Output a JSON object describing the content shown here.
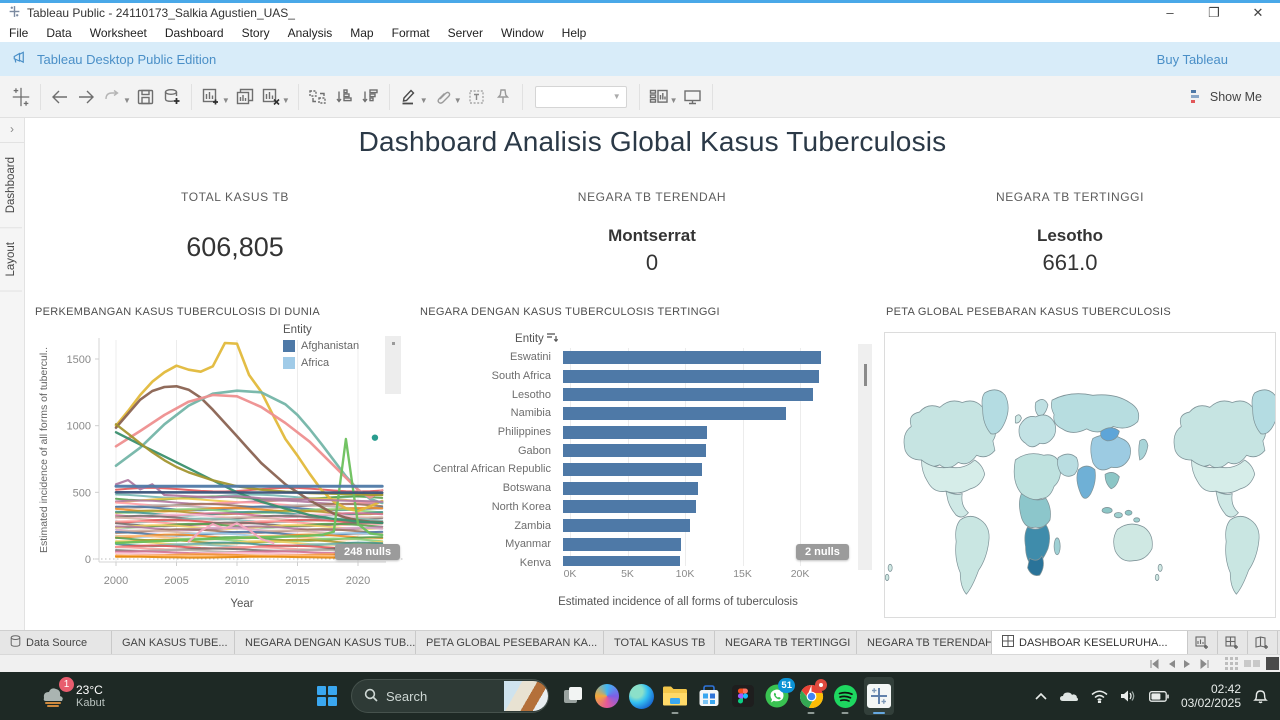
{
  "window": {
    "title": "Tableau Public - 24110173_Salkia Agustien_UAS_",
    "minimize": "–",
    "maximize": "❐",
    "close": "✕"
  },
  "menu": {
    "items": [
      "File",
      "Data",
      "Worksheet",
      "Dashboard",
      "Story",
      "Analysis",
      "Map",
      "Format",
      "Server",
      "Window",
      "Help"
    ]
  },
  "notification": {
    "message": "Tableau Desktop Public Edition",
    "action": "Buy Tableau"
  },
  "toolbar": {
    "show_me": "Show Me",
    "icons": [
      "tableau-logo",
      "back",
      "forward",
      "replay",
      "save",
      "add-data",
      "new-worksheet",
      "duplicate",
      "clear-sheet",
      "swap-rows-columns",
      "sort-ascending",
      "sort-descending",
      "highlight",
      "format-link",
      "text-label",
      "pin",
      "fit-combo",
      "show-cards",
      "presentation-mode"
    ]
  },
  "side_panel": {
    "collapse": "›",
    "tabs": [
      "Dashboard",
      "Layout"
    ]
  },
  "dashboard": {
    "title": "Dashboard Analisis Global Kasus Tuberculosis",
    "kpis": [
      {
        "label": "TOTAL KASUS TB",
        "entity": "",
        "value": "606,805"
      },
      {
        "label": "NEGARA TB TERENDAH",
        "entity": "Montserrat",
        "value": "0"
      },
      {
        "label": "NEGARA TB TERTINGGI",
        "entity": "Lesotho",
        "value": "661.0"
      }
    ]
  },
  "chart_data": [
    {
      "type": "line",
      "title": "PERKEMBANGAN KASUS TUBERCULOSIS DI DUNIA",
      "xlabel": "Year",
      "ylabel": "Estimated incidence of all forms of tubercul..",
      "xlim": [
        1998.6,
        2022.5
      ],
      "ylim": [
        0,
        1650
      ],
      "xticks": [
        2000,
        2005,
        2010,
        2015,
        2020
      ],
      "yticks": [
        0,
        500,
        1000,
        1500
      ],
      "grid": "vertical-gridlines, dotted zero line",
      "legend": {
        "title": "Entity",
        "position": "top-right",
        "entries": [
          {
            "label": "Afghanistan",
            "color": "#4e79a7"
          },
          {
            "label": "Africa",
            "color": "#a0cbe8"
          }
        ]
      },
      "nulls_badge": "248 nulls",
      "series": [
        {
          "color": "#e2b93b",
          "width": 2.6,
          "points": [
            [
              2000,
              1000
            ],
            [
              2001,
              1110
            ],
            [
              2002,
              1230
            ],
            [
              2003,
              1330
            ],
            [
              2004,
              1400
            ],
            [
              2005,
              1450
            ],
            [
              2006,
              1420
            ],
            [
              2007,
              1405
            ],
            [
              2008,
              1445
            ],
            [
              2009,
              1620
            ],
            [
              2010,
              1615
            ],
            [
              2011,
              1380
            ],
            [
              2012,
              1255
            ],
            [
              2013,
              1075
            ],
            [
              2014,
              900
            ],
            [
              2015,
              775
            ],
            [
              2016,
              640
            ],
            [
              2017,
              515
            ],
            [
              2018,
              430
            ],
            [
              2019,
              380
            ],
            [
              2020,
              360
            ],
            [
              2021,
              395
            ],
            [
              2022,
              435
            ]
          ]
        },
        {
          "color": "#8a6352",
          "width": 2.6,
          "points": [
            [
              2000,
              985
            ],
            [
              2001,
              1090
            ],
            [
              2002,
              1195
            ],
            [
              2003,
              1260
            ],
            [
              2004,
              1290
            ],
            [
              2005,
              1295
            ],
            [
              2006,
              1270
            ],
            [
              2007,
              1210
            ],
            [
              2008,
              1120
            ],
            [
              2009,
              1020
            ],
            [
              2010,
              920
            ],
            [
              2011,
              820
            ],
            [
              2012,
              720
            ],
            [
              2013,
              640
            ],
            [
              2014,
              560
            ],
            [
              2015,
              500
            ],
            [
              2016,
              440
            ],
            [
              2017,
              390
            ],
            [
              2018,
              340
            ],
            [
              2019,
              310
            ],
            [
              2020,
              290
            ],
            [
              2021,
              280
            ],
            [
              2022,
              275
            ]
          ]
        },
        {
          "color": "#74b5a8",
          "width": 2.6,
          "points": [
            [
              2000,
              700
            ],
            [
              2002,
              835
            ],
            [
              2004,
              1010
            ],
            [
              2006,
              1150
            ],
            [
              2008,
              1240
            ],
            [
              2010,
              1262
            ],
            [
              2012,
              1250
            ],
            [
              2014,
              1160
            ],
            [
              2015,
              1080
            ],
            [
              2016,
              975
            ],
            [
              2017,
              860
            ],
            [
              2018,
              740
            ],
            [
              2019,
              620
            ],
            [
              2020,
              520
            ],
            [
              2021,
              450
            ],
            [
              2022,
              420
            ]
          ]
        },
        {
          "color": "#ee8f8f",
          "width": 2.6,
          "points": [
            [
              2000,
              845
            ],
            [
              2002,
              960
            ],
            [
              2004,
              1080
            ],
            [
              2006,
              1180
            ],
            [
              2008,
              1230
            ],
            [
              2010,
              1220
            ],
            [
              2012,
              1140
            ],
            [
              2014,
              1020
            ],
            [
              2016,
              880
            ],
            [
              2018,
              700
            ],
            [
              2020,
              520
            ],
            [
              2021,
              460
            ],
            [
              2022,
              515
            ]
          ]
        },
        {
          "color": "#3a8f6e",
          "width": 2.4,
          "points": [
            [
              2000,
              950
            ],
            [
              2002,
              858
            ],
            [
              2004,
              770
            ],
            [
              2006,
              680
            ],
            [
              2008,
              590
            ],
            [
              2010,
              500
            ],
            [
              2012,
              430
            ],
            [
              2014,
              378
            ],
            [
              2016,
              330
            ],
            [
              2018,
              300
            ],
            [
              2020,
              282
            ],
            [
              2022,
              270
            ]
          ]
        },
        {
          "color": "#a3952f",
          "width": 2.4,
          "points": [
            [
              2000,
              1010
            ],
            [
              2001,
              940
            ],
            [
              2002,
              868
            ],
            [
              2003,
              800
            ],
            [
              2004,
              740
            ],
            [
              2005,
              690
            ],
            [
              2006,
              650
            ],
            [
              2008,
              590
            ],
            [
              2010,
              545
            ],
            [
              2012,
              520
            ],
            [
              2014,
              505
            ],
            [
              2016,
              495
            ],
            [
              2018,
              490
            ],
            [
              2020,
              485
            ],
            [
              2022,
              480
            ]
          ]
        },
        {
          "color": "#6cc05c",
          "width": 2.4,
          "points": [
            [
              2000,
              120
            ],
            [
              2005,
              140
            ],
            [
              2010,
              158
            ],
            [
              2015,
              170
            ],
            [
              2017,
              180
            ],
            [
              2018,
              205
            ],
            [
              2019,
              900
            ],
            [
              2020,
              262
            ],
            [
              2021,
              192
            ],
            [
              2022,
              180
            ]
          ]
        },
        {
          "color": "#b07aa1",
          "width": 2.2,
          "points": [
            [
              2000,
              560
            ],
            [
              2001,
              592
            ],
            [
              2002,
              522
            ],
            [
              2003,
              560
            ],
            [
              2004,
              480
            ],
            [
              2006,
              470
            ],
            [
              2008,
              462
            ],
            [
              2010,
              470
            ],
            [
              2012,
              455
            ],
            [
              2014,
              450
            ],
            [
              2016,
              445
            ],
            [
              2018,
              440
            ],
            [
              2020,
              435
            ],
            [
              2022,
              430
            ]
          ]
        },
        {
          "color": "#4e79a7",
          "width": 3.0,
          "points": [
            [
              2000,
              545
            ],
            [
              2022,
              545
            ]
          ]
        },
        {
          "color": "#39537a",
          "width": 2.6,
          "points": [
            [
              2000,
              500
            ],
            [
              2022,
              497
            ]
          ]
        },
        {
          "color": "#f4a6c0",
          "width": 2.2,
          "points": [
            [
              2006,
              130
            ],
            [
              2007,
              210
            ],
            [
              2008,
              262
            ],
            [
              2009,
              228
            ],
            [
              2010,
              268
            ],
            [
              2011,
              218
            ],
            [
              2012,
              150
            ],
            [
              2013,
              120
            ]
          ]
        }
      ],
      "band_lines": [
        {
          "y": 520,
          "color": "#e15759"
        },
        {
          "y": 470,
          "color": "#76b7b2"
        },
        {
          "y": 455,
          "color": "#59a14f"
        },
        {
          "y": 440,
          "color": "#edc948"
        },
        {
          "y": 425,
          "color": "#b07aa1"
        },
        {
          "y": 412,
          "color": "#ff9da7"
        },
        {
          "y": 400,
          "color": "#9c755f"
        },
        {
          "y": 390,
          "color": "#bab0ac"
        },
        {
          "y": 380,
          "color": "#4e79a7"
        },
        {
          "y": 370,
          "color": "#f28e2b"
        },
        {
          "y": 360,
          "color": "#8cd17d"
        },
        {
          "y": 350,
          "color": "#b6992d"
        },
        {
          "y": 340,
          "color": "#499894"
        },
        {
          "y": 330,
          "color": "#d37295"
        },
        {
          "y": 320,
          "color": "#fabfd2"
        },
        {
          "y": 310,
          "color": "#79706e"
        },
        {
          "y": 300,
          "color": "#d7b5a6"
        },
        {
          "y": 290,
          "color": "#86bcb6"
        },
        {
          "y": 280,
          "color": "#e15759"
        },
        {
          "y": 270,
          "color": "#ff9d9a"
        },
        {
          "y": 260,
          "color": "#79706e"
        },
        {
          "y": 250,
          "color": "#59a14f"
        },
        {
          "y": 240,
          "color": "#f1ce63"
        },
        {
          "y": 230,
          "color": "#b07aa1"
        },
        {
          "y": 220,
          "color": "#d4a6c8"
        },
        {
          "y": 210,
          "color": "#9d7660"
        },
        {
          "y": 200,
          "color": "#d7b5a6"
        },
        {
          "y": 190,
          "color": "#4e79a7"
        },
        {
          "y": 180,
          "color": "#a0cbe8"
        },
        {
          "y": 170,
          "color": "#f28e2b"
        },
        {
          "y": 160,
          "color": "#ffbe7d"
        },
        {
          "y": 150,
          "color": "#59a14f"
        },
        {
          "y": 140,
          "color": "#8cd17d"
        },
        {
          "y": 130,
          "color": "#b6992d"
        },
        {
          "y": 120,
          "color": "#f1ce63"
        },
        {
          "y": 110,
          "color": "#499894"
        },
        {
          "y": 100,
          "color": "#86bcb6"
        },
        {
          "y": 90,
          "color": "#e15759"
        },
        {
          "y": 80,
          "color": "#ff9d9a"
        },
        {
          "y": 70,
          "color": "#79706e"
        },
        {
          "y": 60,
          "color": "#bab0ac"
        },
        {
          "y": 50,
          "color": "#d37295"
        },
        {
          "y": 40,
          "color": "#fabfd2"
        },
        {
          "y": 30,
          "color": "#f28e2b"
        },
        {
          "y": 22,
          "color": "#ffbe7d"
        },
        {
          "y": 14,
          "color": "#e58606"
        }
      ],
      "outlier_dot": {
        "x": 2021.4,
        "y": 910,
        "color": "#2a9d8f"
      }
    },
    {
      "type": "bar",
      "title": "NEGARA DENGAN KASUS TUBERCULOSIS TERTINGGI",
      "row_header": "Entity",
      "xlabel": "Estimated incidence of all forms of tuberculosis",
      "categories": [
        "Eswatini",
        "South Africa",
        "Lesotho",
        "Namibia",
        "Philippines",
        "Gabon",
        "Central African Republic",
        "Botswana",
        "North Korea",
        "Zambia",
        "Myanmar",
        "Kenya"
      ],
      "values": [
        22400,
        22300,
        21700,
        19400,
        12500,
        12450,
        12100,
        11700,
        11600,
        11000,
        10300,
        10200
      ],
      "xticks": [
        "0K",
        "5K",
        "10K",
        "15K",
        "20K"
      ],
      "xtick_values": [
        0,
        5000,
        10000,
        15000,
        20000
      ],
      "xmax": 23300,
      "bar_color": "#4e79a7",
      "nulls_badge": "2 nulls"
    },
    {
      "type": "map",
      "title": "PETA GLOBAL PESEBARAN KASUS TUBERCULOSIS",
      "description": "Choropleth world map, wrapped/repeated horizontally; highest intensity in Southern Africa",
      "palette": {
        "low": "#d3ecea",
        "mid": "#8cc6cb",
        "high": "#2a7399"
      }
    }
  ],
  "sheet_tabs": {
    "items": [
      {
        "label": "Data Source",
        "icon": "datasource-icon",
        "active": false
      },
      {
        "label": "GAN KASUS TUBE...",
        "icon": "",
        "active": false
      },
      {
        "label": "NEGARA DENGAN KASUS TUB...",
        "icon": "",
        "active": false
      },
      {
        "label": "PETA GLOBAL PESEBARAN KA...",
        "icon": "",
        "active": false
      },
      {
        "label": "TOTAL KASUS TB",
        "icon": "",
        "active": false
      },
      {
        "label": "NEGARA TB TERTINGGI",
        "icon": "",
        "active": false
      },
      {
        "label": "NEGARA TB TERENDAH",
        "icon": "",
        "active": false
      },
      {
        "label": "DASHBOAR KESELURUHA...",
        "icon": "dashboard-icon",
        "active": true
      }
    ]
  },
  "taskbar": {
    "weather": {
      "temp": "23°C",
      "condition": "Kabut",
      "badge": "1"
    },
    "search_placeholder": "Search",
    "apps": [
      "task-view",
      "copilot",
      "edge",
      "file-explorer",
      "microsoft-store",
      "figma",
      "whatsapp",
      "chrome",
      "spotify",
      "tableau"
    ],
    "open_apps": [
      "file-explorer",
      "chrome",
      "spotify",
      "tableau"
    ],
    "badges": {
      "whatsapp": "51"
    },
    "tray": {
      "time": "02:42",
      "date": "03/02/2025"
    }
  }
}
